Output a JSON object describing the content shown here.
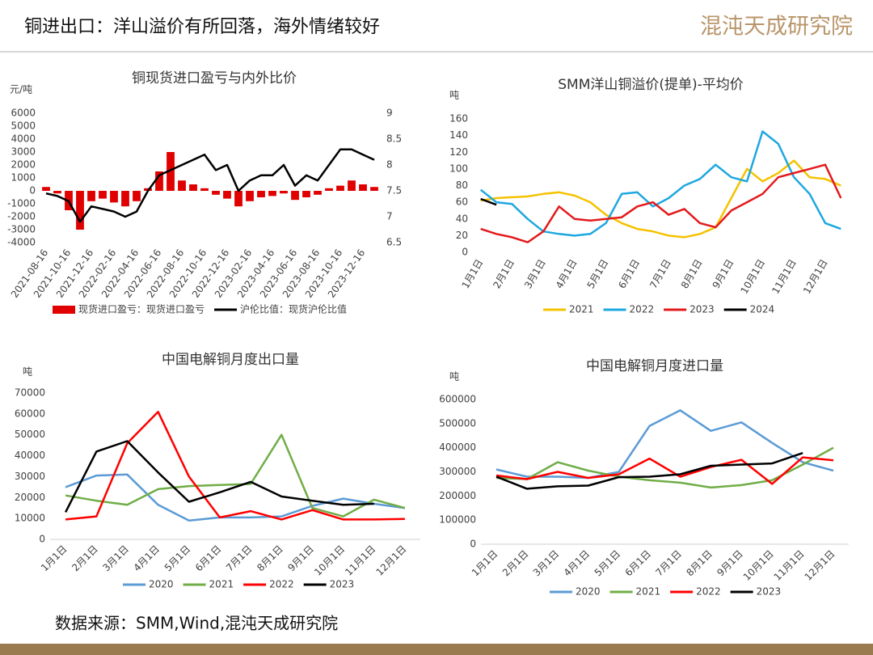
{
  "header": {
    "title": "铜进出口：洋山溢价有所回落，海外情绪较好",
    "logo": "混沌天成研究院"
  },
  "chart_data": [
    {
      "type": "combo",
      "title": "铜现货进口盈亏与内外比价",
      "y_label": "元/吨",
      "categories": [
        "2021-08-16",
        null,
        "2021-10-16",
        null,
        "2021-12-16",
        null,
        "2022-02-16",
        null,
        "2022-04-16",
        null,
        "2022-06-16",
        null,
        "2022-08-16",
        null,
        "2022-10-16",
        null,
        "2022-12-16",
        null,
        "2023-02-16",
        null,
        "2023-04-16",
        null,
        "2023-06-16",
        null,
        "2023-08-16",
        null,
        "2023-10-16",
        null,
        "2023-12-16",
        null
      ],
      "series": [
        {
          "name": "现货进口盈亏：现货进口盈亏",
          "type": "bar",
          "color": "#e00000",
          "values": [
            300,
            -200,
            -1500,
            -3000,
            -800,
            -600,
            -900,
            -1200,
            -800,
            200,
            1500,
            3000,
            800,
            500,
            200,
            -300,
            -600,
            -1200,
            -800,
            -500,
            -400,
            -200,
            -700,
            -500,
            -300,
            200,
            400,
            800,
            500,
            300
          ]
        },
        {
          "name": "沪伦比值：现货沪伦比值",
          "type": "line",
          "axis": "y2",
          "color": "#000000",
          "values": [
            7.45,
            7.4,
            7.3,
            6.9,
            7.2,
            7.15,
            7.1,
            7.0,
            7.1,
            7.5,
            7.8,
            7.9,
            8.0,
            8.1,
            8.2,
            7.9,
            8.0,
            7.5,
            7.7,
            7.8,
            7.8,
            8.0,
            7.6,
            7.8,
            7.7,
            8.0,
            8.3,
            8.3,
            8.2,
            8.1
          ]
        }
      ],
      "ylim": [
        -4000,
        6000
      ],
      "yticks": [
        -4000,
        -3000,
        -2000,
        -1000,
        0,
        1000,
        2000,
        3000,
        4000,
        5000,
        6000
      ],
      "y2lim": [
        6.5,
        9
      ],
      "y2ticks": [
        6.5,
        7,
        7.5,
        8,
        8.5,
        9
      ],
      "grid": false
    },
    {
      "type": "line",
      "title": "SMM洋山铜溢价(提单)-平均价",
      "y_label": "吨",
      "categories": [
        "1月1日",
        null,
        "2月1日",
        null,
        "3月1日",
        null,
        "4月1日",
        null,
        "5月1日",
        null,
        "6月1日",
        null,
        "7月1日",
        null,
        "8月1日",
        null,
        "9月1日",
        null,
        "10月1日",
        null,
        "11月1日",
        null,
        "12月1日",
        null
      ],
      "series": [
        {
          "name": "2021",
          "color": "#f5c200",
          "values": [
            62,
            65,
            66,
            67,
            70,
            72,
            68,
            60,
            45,
            35,
            28,
            25,
            20,
            18,
            22,
            30,
            65,
            100,
            85,
            95,
            110,
            90,
            88,
            80
          ]
        },
        {
          "name": "2022",
          "color": "#1ea7e0",
          "values": [
            75,
            60,
            58,
            40,
            25,
            22,
            20,
            22,
            35,
            70,
            72,
            55,
            65,
            80,
            88,
            105,
            90,
            85,
            145,
            130,
            90,
            70,
            35,
            28
          ]
        },
        {
          "name": "2023",
          "color": "#e31a1c",
          "values": [
            28,
            22,
            18,
            12,
            25,
            55,
            40,
            38,
            40,
            42,
            55,
            60,
            45,
            52,
            35,
            30,
            50,
            60,
            70,
            90,
            95,
            100,
            105,
            65
          ]
        },
        {
          "name": "2024",
          "color": "#000000",
          "values": [
            64,
            57,
            null,
            null,
            null,
            null,
            null,
            null,
            null,
            null,
            null,
            null,
            null,
            null,
            null,
            null,
            null,
            null,
            null,
            null,
            null,
            null,
            null,
            null
          ]
        }
      ],
      "ylim": [
        0,
        160
      ],
      "yticks": [
        0,
        20,
        40,
        60,
        80,
        100,
        120,
        140,
        160
      ],
      "grid": false
    },
    {
      "type": "line",
      "title": "中国电解铜月度出口量",
      "y_label": "吨",
      "categories": [
        "1月1日",
        "2月1日",
        "3月1日",
        "4月1日",
        "5月1日",
        "6月1日",
        "7月1日",
        "8月1日",
        "9月1日",
        "10月1日",
        "11月1日",
        "12月1日"
      ],
      "series": [
        {
          "name": "2020",
          "color": "#5b9bd5",
          "values": [
            25000,
            30500,
            31000,
            16500,
            9000,
            10500,
            10500,
            11000,
            16000,
            19500,
            17000,
            15000
          ]
        },
        {
          "name": "2021",
          "color": "#70ad47",
          "values": [
            21000,
            18500,
            16500,
            24000,
            25500,
            26000,
            26500,
            50000,
            15000,
            11000,
            19000,
            15000
          ]
        },
        {
          "name": "2022",
          "color": "#ff0000",
          "values": [
            9500,
            11000,
            46000,
            61000,
            30000,
            10500,
            13500,
            9500,
            14000,
            9500,
            9500,
            9800
          ]
        },
        {
          "name": "2023",
          "color": "#000000",
          "values": [
            13000,
            42000,
            47000,
            32000,
            18000,
            22500,
            27500,
            20500,
            18500,
            16500,
            17000,
            null
          ]
        }
      ],
      "ylim": [
        0,
        70000
      ],
      "yticks": [
        0,
        10000,
        20000,
        30000,
        40000,
        50000,
        60000,
        70000
      ],
      "grid": false
    },
    {
      "type": "line",
      "title": "中国电解铜月度进口量",
      "y_label": "吨",
      "categories": [
        "1月1日",
        "2月1日",
        "3月1日",
        "4月1日",
        "5月1日",
        "6月1日",
        "7月1日",
        "8月1日",
        "9月1日",
        "10月1日",
        "11月1日",
        "12月1日"
      ],
      "series": [
        {
          "name": "2020",
          "color": "#5b9bd5",
          "values": [
            310000,
            280000,
            280000,
            275000,
            300000,
            490000,
            555000,
            470000,
            505000,
            420000,
            340000,
            305000
          ]
        },
        {
          "name": "2021",
          "color": "#70ad47",
          "values": [
            275000,
            270000,
            340000,
            305000,
            280000,
            265000,
            255000,
            235000,
            245000,
            265000,
            330000,
            400000
          ]
        },
        {
          "name": "2022",
          "color": "#ff0000",
          "values": [
            285000,
            270000,
            300000,
            275000,
            290000,
            355000,
            280000,
            320000,
            350000,
            250000,
            360000,
            348000
          ]
        },
        {
          "name": "2023",
          "color": "#000000",
          "values": [
            280000,
            230000,
            240000,
            243000,
            278000,
            280000,
            290000,
            325000,
            330000,
            335000,
            378000,
            null
          ]
        }
      ],
      "ylim": [
        0,
        600000
      ],
      "yticks": [
        0,
        100000,
        200000,
        300000,
        400000,
        500000,
        600000
      ],
      "grid": false
    }
  ],
  "footer": {
    "source": "数据来源：SMM,Wind,混沌天成研究院"
  }
}
